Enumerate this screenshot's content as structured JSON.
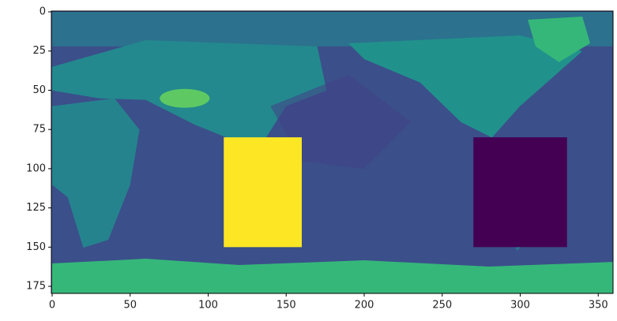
{
  "chart_data": {
    "type": "image",
    "xlim": [
      -0.5,
      359.5
    ],
    "ylim": [
      179.5,
      -0.5
    ],
    "xticks": [
      0,
      50,
      100,
      150,
      200,
      250,
      300,
      350
    ],
    "yticks": [
      0,
      25,
      50,
      75,
      100,
      125,
      150,
      175
    ],
    "regions": [
      {
        "x": [
          110,
          160
        ],
        "y": [
          80,
          150
        ],
        "color": "#fde725"
      },
      {
        "x": [
          270,
          330
        ],
        "y": [
          80,
          150
        ],
        "color": "#440154"
      }
    ]
  }
}
